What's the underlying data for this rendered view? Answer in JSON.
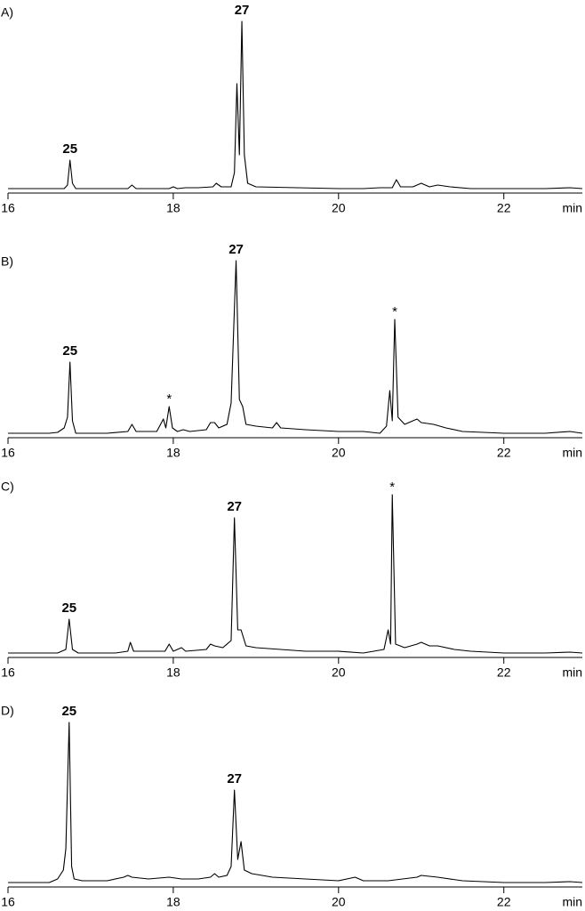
{
  "chart_data": [
    {
      "type": "line",
      "panel_label": "A)",
      "xlabel": "min",
      "xlim": [
        16,
        22.95
      ],
      "xticks": [
        16,
        18,
        20,
        22
      ],
      "ylim": [
        0,
        100
      ],
      "x": [
        16.0,
        16.5,
        16.68,
        16.72,
        16.75,
        16.78,
        16.82,
        17.2,
        17.45,
        17.5,
        17.55,
        17.95,
        18.0,
        18.05,
        18.15,
        18.3,
        18.48,
        18.52,
        18.58,
        18.7,
        18.74,
        18.77,
        18.8,
        18.83,
        18.86,
        18.9,
        19.0,
        19.5,
        20.0,
        20.3,
        20.5,
        20.65,
        20.7,
        20.75,
        20.9,
        21.0,
        21.1,
        21.2,
        21.35,
        21.6,
        22.0,
        22.5,
        22.8,
        22.95
      ],
      "series": [
        {
          "color": "#000000",
          "values": [
            1,
            1,
            1,
            3,
            17,
            4,
            1,
            1,
            1,
            3,
            1,
            1,
            2,
            1,
            1.5,
            1.5,
            2,
            4,
            2,
            2,
            10,
            60,
            20,
            95,
            20,
            4,
            2,
            1.5,
            1,
            1,
            1.5,
            1.5,
            6,
            2,
            2,
            4,
            2,
            3,
            2,
            1,
            1,
            1,
            1.5,
            1
          ]
        }
      ],
      "annotations": [
        {
          "text": "25",
          "x": 16.75
        },
        {
          "text": "27",
          "x": 18.83
        }
      ]
    },
    {
      "type": "line",
      "panel_label": "B)",
      "xlabel": "min",
      "xlim": [
        16,
        22.95
      ],
      "xticks": [
        16,
        18,
        20,
        22
      ],
      "ylim": [
        0,
        100
      ],
      "x": [
        16.0,
        16.5,
        16.6,
        16.68,
        16.72,
        16.75,
        16.78,
        16.82,
        17.2,
        17.45,
        17.5,
        17.55,
        17.8,
        17.88,
        17.91,
        17.95,
        17.99,
        18.05,
        18.12,
        18.2,
        18.4,
        18.45,
        18.5,
        18.55,
        18.65,
        18.7,
        18.76,
        18.8,
        18.84,
        18.88,
        19.0,
        19.2,
        19.25,
        19.3,
        19.6,
        20.0,
        20.3,
        20.5,
        20.58,
        20.62,
        20.65,
        20.68,
        20.72,
        20.8,
        20.9,
        20.95,
        21.0,
        21.15,
        21.3,
        21.5,
        22.0,
        22.5,
        22.8,
        22.95
      ],
      "series": [
        {
          "color": "#000000",
          "values": [
            1,
            1,
            1.5,
            4,
            10,
            41,
            8,
            1,
            1,
            2,
            6,
            2,
            2,
            9,
            4,
            16,
            4,
            2,
            3,
            2,
            3,
            7,
            7,
            4,
            6,
            18,
            98,
            20,
            16,
            6,
            5,
            4,
            7,
            4,
            3,
            2,
            2,
            1,
            5,
            25,
            8,
            65,
            10,
            6,
            8,
            9,
            7,
            6,
            4,
            2,
            1,
            1,
            2,
            1
          ]
        }
      ],
      "annotations": [
        {
          "text": "25",
          "x": 16.75
        },
        {
          "text": "27",
          "x": 18.76
        },
        {
          "text": "*",
          "x": 17.95
        },
        {
          "text": "*",
          "x": 20.68
        }
      ]
    },
    {
      "type": "line",
      "panel_label": "C)",
      "xlabel": "min",
      "xlim": [
        16,
        22.95
      ],
      "xticks": [
        16,
        18,
        20,
        22
      ],
      "ylim": [
        0,
        100
      ],
      "x": [
        16.0,
        16.6,
        16.7,
        16.74,
        16.78,
        16.85,
        17.3,
        17.45,
        17.48,
        17.52,
        17.9,
        17.95,
        18.0,
        18.1,
        18.15,
        18.4,
        18.45,
        18.5,
        18.6,
        18.7,
        18.74,
        18.78,
        18.82,
        18.88,
        19.0,
        19.3,
        19.6,
        20.0,
        20.3,
        20.55,
        20.6,
        20.63,
        20.65,
        20.69,
        20.8,
        20.95,
        21.0,
        21.1,
        21.2,
        21.4,
        21.6,
        22.0,
        22.5,
        22.8,
        22.95
      ],
      "series": [
        {
          "color": "#000000",
          "values": [
            1,
            1,
            3,
            20,
            3,
            1,
            1,
            2,
            7,
            2,
            2,
            6,
            2,
            4,
            2,
            3,
            6,
            5,
            4,
            8,
            77,
            14,
            14,
            5,
            4,
            3,
            2,
            2,
            1,
            3,
            14,
            6,
            90,
            6,
            4,
            6,
            7,
            5,
            5,
            3,
            2,
            1,
            1,
            1.5,
            1
          ]
        }
      ],
      "annotations": [
        {
          "text": "25",
          "x": 16.74
        },
        {
          "text": "27",
          "x": 18.74
        },
        {
          "text": "*",
          "x": 20.65
        }
      ]
    },
    {
      "type": "line",
      "panel_label": "D)",
      "xlabel": "min",
      "xlim": [
        16,
        22.95
      ],
      "xticks": [
        16,
        18,
        20,
        22
      ],
      "ylim": [
        0,
        100
      ],
      "x": [
        16.0,
        16.5,
        16.6,
        16.67,
        16.7,
        16.74,
        16.77,
        16.8,
        16.9,
        17.2,
        17.4,
        17.45,
        17.5,
        17.7,
        17.95,
        18.1,
        18.3,
        18.45,
        18.5,
        18.55,
        18.65,
        18.7,
        18.74,
        18.78,
        18.82,
        18.86,
        18.95,
        19.2,
        19.6,
        20.0,
        20.2,
        20.3,
        20.6,
        20.95,
        21.0,
        21.2,
        21.5,
        22.0,
        22.5,
        22.8,
        22.95
      ],
      "series": [
        {
          "color": "#000000",
          "values": [
            1,
            1,
            3,
            8,
            20,
            91,
            10,
            3,
            2,
            2,
            4,
            5,
            4,
            3,
            4,
            3,
            3,
            4,
            6,
            4,
            5,
            10,
            53,
            14,
            24,
            8,
            6,
            4,
            3,
            2,
            4,
            2,
            2,
            4,
            5,
            4,
            2,
            1,
            1,
            1.5,
            1
          ]
        }
      ],
      "annotations": [
        {
          "text": "25",
          "x": 16.74
        },
        {
          "text": "27",
          "x": 18.74
        }
      ]
    }
  ]
}
